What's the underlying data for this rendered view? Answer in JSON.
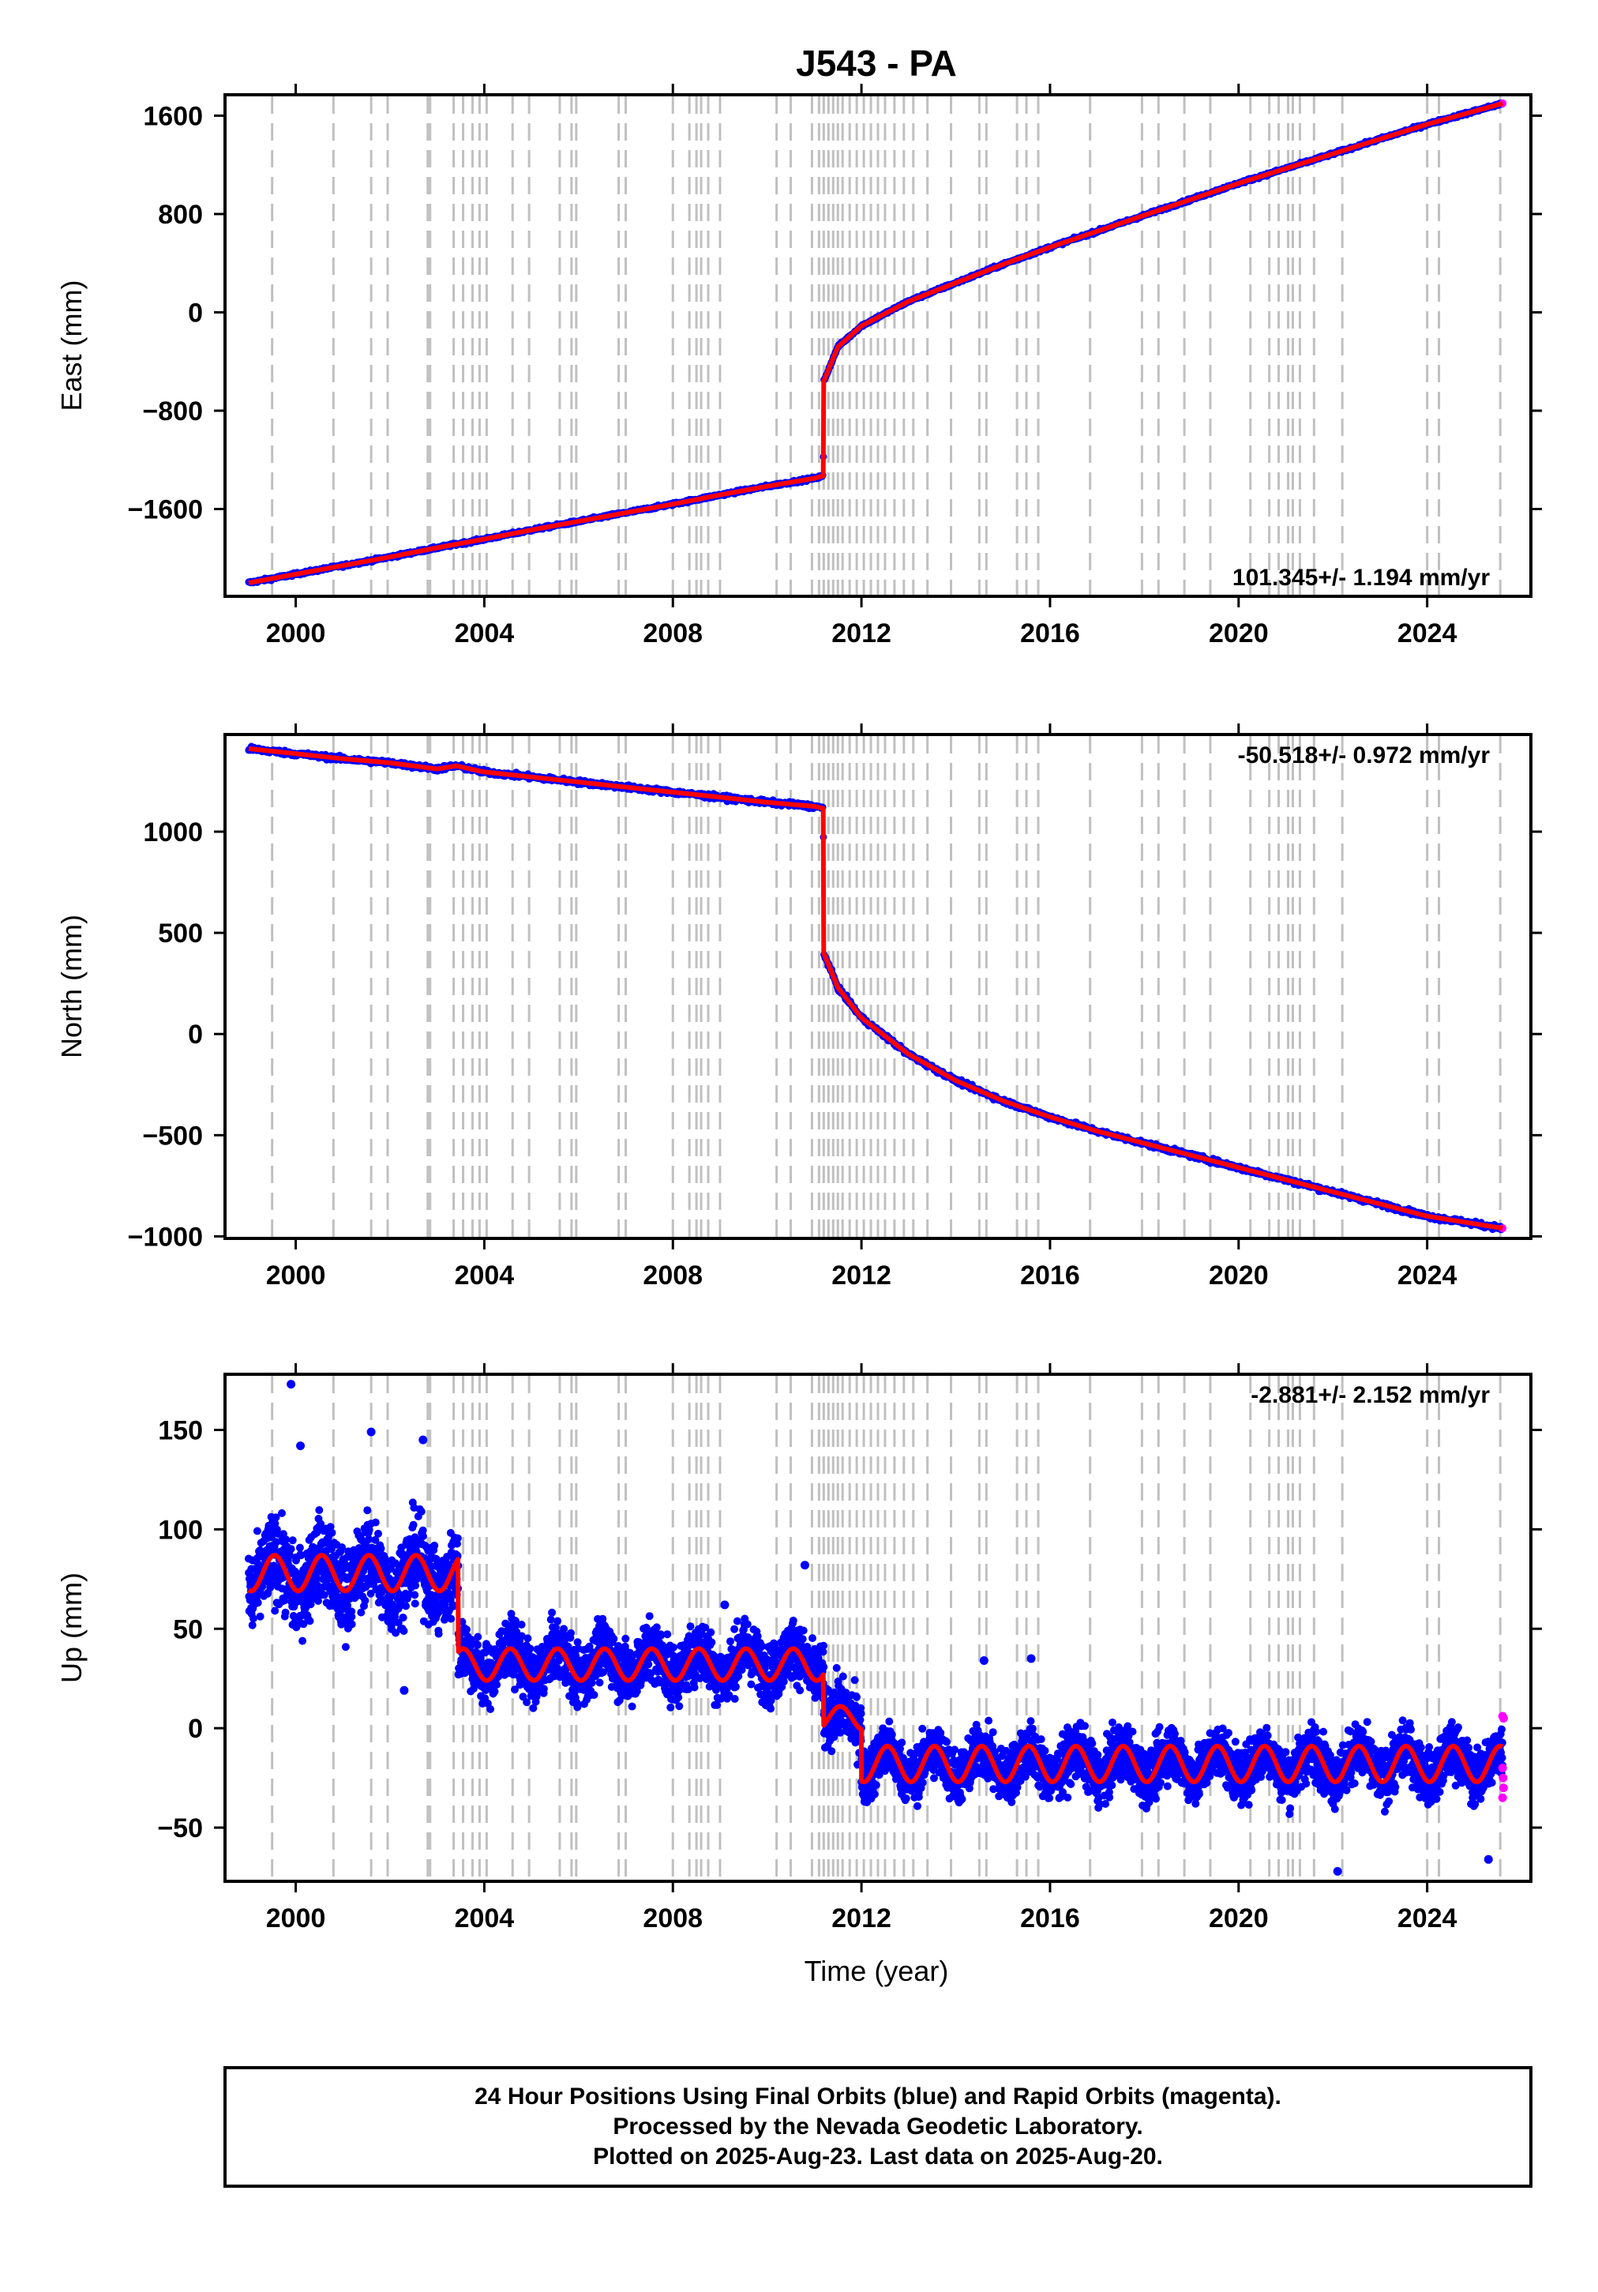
{
  "title": "J543 - PA",
  "xlabel": "Time (year)",
  "colors": {
    "final": "#0000ff",
    "rapid": "#ff00ff",
    "model": "#ff0000",
    "events": "#c0c0c0"
  },
  "footer": [
    "24 Hour Positions Using Final Orbits (blue) and Rapid Orbits (magenta).",
    "Processed by the Nevada Geodetic Laboratory.",
    "Plotted on 2025-Aug-23. Last data on 2025-Aug-20."
  ],
  "chart_data": [
    {
      "type": "scatter",
      "ylabel": "East (mm)",
      "rate": "101.345+/- 1.194 mm/yr",
      "rate_position": "bottom-right",
      "xlim": [
        1998.5,
        2026.2
      ],
      "ylim": [
        -2310,
        1770
      ],
      "xticks": [
        2000,
        2004,
        2008,
        2012,
        2016,
        2020,
        2024
      ],
      "yticks": [
        -1600,
        -800,
        0,
        800,
        1600
      ],
      "ytick_labels": [
        "−1600",
        "−800",
        "0",
        "800",
        "1600"
      ],
      "grid": false,
      "series_points": [
        {
          "x": 1999.0,
          "y": -2200
        },
        {
          "x": 2000.0,
          "y": -2130
        },
        {
          "x": 2001.0,
          "y": -2060
        },
        {
          "x": 2002.0,
          "y": -1990
        },
        {
          "x": 2003.0,
          "y": -1915
        },
        {
          "x": 2004.0,
          "y": -1845
        },
        {
          "x": 2005.0,
          "y": -1770
        },
        {
          "x": 2006.0,
          "y": -1700
        },
        {
          "x": 2007.0,
          "y": -1630
        },
        {
          "x": 2008.0,
          "y": -1560
        },
        {
          "x": 2009.0,
          "y": -1485
        },
        {
          "x": 2010.0,
          "y": -1415
        },
        {
          "x": 2011.0,
          "y": -1350
        },
        {
          "x": 2011.19,
          "y": -1330
        },
        {
          "x": 2011.2,
          "y": -560
        },
        {
          "x": 2011.5,
          "y": -280
        },
        {
          "x": 2012.0,
          "y": -110
        },
        {
          "x": 2013.0,
          "y": 90
        },
        {
          "x": 2014.0,
          "y": 240
        },
        {
          "x": 2015.0,
          "y": 390
        },
        {
          "x": 2016.0,
          "y": 530
        },
        {
          "x": 2017.0,
          "y": 660
        },
        {
          "x": 2018.0,
          "y": 790
        },
        {
          "x": 2019.0,
          "y": 920
        },
        {
          "x": 2020.0,
          "y": 1050
        },
        {
          "x": 2021.0,
          "y": 1170
        },
        {
          "x": 2022.0,
          "y": 1290
        },
        {
          "x": 2023.0,
          "y": 1410
        },
        {
          "x": 2024.0,
          "y": 1530
        },
        {
          "x": 2025.6,
          "y": 1700
        }
      ]
    },
    {
      "type": "scatter",
      "ylabel": "North (mm)",
      "rate": "-50.518+/- 0.972 mm/yr",
      "rate_position": "top-right",
      "xlim": [
        1998.5,
        2026.2
      ],
      "ylim": [
        -1010,
        1480
      ],
      "xticks": [
        2000,
        2004,
        2008,
        2012,
        2016,
        2020,
        2024
      ],
      "yticks": [
        -1000,
        -500,
        0,
        500,
        1000
      ],
      "ytick_labels": [
        "−1000",
        "−500",
        "0",
        "500",
        "1000"
      ],
      "grid": false,
      "series_points": [
        {
          "x": 1999.0,
          "y": 1410
        },
        {
          "x": 2000.0,
          "y": 1385
        },
        {
          "x": 2001.0,
          "y": 1360
        },
        {
          "x": 2002.0,
          "y": 1340
        },
        {
          "x": 2003.0,
          "y": 1310
        },
        {
          "x": 2003.4,
          "y": 1325
        },
        {
          "x": 2004.0,
          "y": 1295
        },
        {
          "x": 2005.0,
          "y": 1270
        },
        {
          "x": 2006.0,
          "y": 1245
        },
        {
          "x": 2007.0,
          "y": 1220
        },
        {
          "x": 2008.0,
          "y": 1195
        },
        {
          "x": 2009.0,
          "y": 1170
        },
        {
          "x": 2010.0,
          "y": 1145
        },
        {
          "x": 2011.0,
          "y": 1125
        },
        {
          "x": 2011.19,
          "y": 1115
        },
        {
          "x": 2011.2,
          "y": 400
        },
        {
          "x": 2011.5,
          "y": 230
        },
        {
          "x": 2012.0,
          "y": 80
        },
        {
          "x": 2013.0,
          "y": -100
        },
        {
          "x": 2014.0,
          "y": -230
        },
        {
          "x": 2015.0,
          "y": -330
        },
        {
          "x": 2016.0,
          "y": -410
        },
        {
          "x": 2017.0,
          "y": -480
        },
        {
          "x": 2018.0,
          "y": -540
        },
        {
          "x": 2019.0,
          "y": -600
        },
        {
          "x": 2020.0,
          "y": -660
        },
        {
          "x": 2021.0,
          "y": -720
        },
        {
          "x": 2022.0,
          "y": -780
        },
        {
          "x": 2023.0,
          "y": -840
        },
        {
          "x": 2024.0,
          "y": -900
        },
        {
          "x": 2025.6,
          "y": -960
        }
      ]
    },
    {
      "type": "scatter",
      "ylabel": "Up (mm)",
      "rate": "-2.881+/- 2.152 mm/yr",
      "rate_position": "top-right",
      "xlim": [
        1998.5,
        2026.2
      ],
      "ylim": [
        -77,
        178
      ],
      "xticks": [
        2000,
        2004,
        2008,
        2012,
        2016,
        2020,
        2024
      ],
      "yticks": [
        -50,
        0,
        50,
        100,
        150
      ],
      "ytick_labels": [
        "−50",
        "0",
        "50",
        "100",
        "150"
      ],
      "grid": false,
      "segments": [
        {
          "x_start": 1999.0,
          "x_end": 2003.45,
          "mean": 77,
          "amplitude": 9,
          "noise": 14
        },
        {
          "x_start": 2003.45,
          "x_end": 2011.2,
          "mean": 33,
          "amplitude": 7,
          "noise": 10
        },
        {
          "x_start": 2011.2,
          "x_end": 2012.0,
          "mean": 5,
          "amplitude": 5,
          "noise": 10
        },
        {
          "x_start": 2012.0,
          "x_end": 2025.6,
          "mean": -18,
          "amplitude": 7,
          "noise": 9
        }
      ],
      "outliers": [
        {
          "x": 1999.9,
          "y": 173
        },
        {
          "x": 2001.6,
          "y": 149
        },
        {
          "x": 2002.7,
          "y": 145
        },
        {
          "x": 2000.1,
          "y": 142
        },
        {
          "x": 2010.8,
          "y": 82
        },
        {
          "x": 2002.3,
          "y": 19
        },
        {
          "x": 2022.1,
          "y": -72
        },
        {
          "x": 2025.3,
          "y": -66
        },
        {
          "x": 2014.6,
          "y": 34
        },
        {
          "x": 2015.6,
          "y": 35
        },
        {
          "x": 2009.1,
          "y": 62
        }
      ],
      "rapid_points": [
        {
          "x": 2025.6,
          "y": 6
        },
        {
          "x": 2025.62,
          "y": 5
        },
        {
          "x": 2025.6,
          "y": -20
        },
        {
          "x": 2025.61,
          "y": -25
        },
        {
          "x": 2025.62,
          "y": -30
        },
        {
          "x": 2025.6,
          "y": -35
        }
      ],
      "model_trend": {
        "segments": [
          {
            "x_start": 1999.0,
            "x_end": 2003.45,
            "mean": 78,
            "amplitude": 9
          },
          {
            "x_start": 2003.45,
            "x_end": 2011.2,
            "mean": 32,
            "amplitude": 8
          },
          {
            "x_start": 2011.2,
            "x_end": 2012.0,
            "mean": 5,
            "amplitude": 6
          },
          {
            "x_start": 2012.0,
            "x_end": 2025.6,
            "mean": -18,
            "amplitude": 9
          }
        ]
      }
    }
  ],
  "event_lines": [
    1999.5,
    2000.8,
    2001.6,
    2001.95,
    2002.8,
    2002.85,
    2003.35,
    2003.55,
    2003.75,
    2003.9,
    2004.05,
    2004.6,
    2004.95,
    2005.6,
    2005.85,
    2005.95,
    2006.85,
    2007.0,
    2008.0,
    2008.35,
    2008.5,
    2008.6,
    2008.75,
    2009.0,
    2010.2,
    2010.5,
    2010.95,
    2011.1,
    2011.2,
    2011.3,
    2011.4,
    2011.5,
    2011.6,
    2011.75,
    2011.9,
    2012.05,
    2012.2,
    2012.35,
    2012.5,
    2012.7,
    2012.9,
    2013.1,
    2013.4,
    2013.9,
    2014.5,
    2014.65,
    2015.3,
    2015.5,
    2015.75,
    2016.85,
    2017.95,
    2018.3,
    2018.85,
    2019.4,
    2020.25,
    2020.65,
    2020.85,
    2021.05,
    2021.15,
    2021.3,
    2021.6,
    2022.2,
    2024.0,
    2024.25,
    2025.55
  ]
}
